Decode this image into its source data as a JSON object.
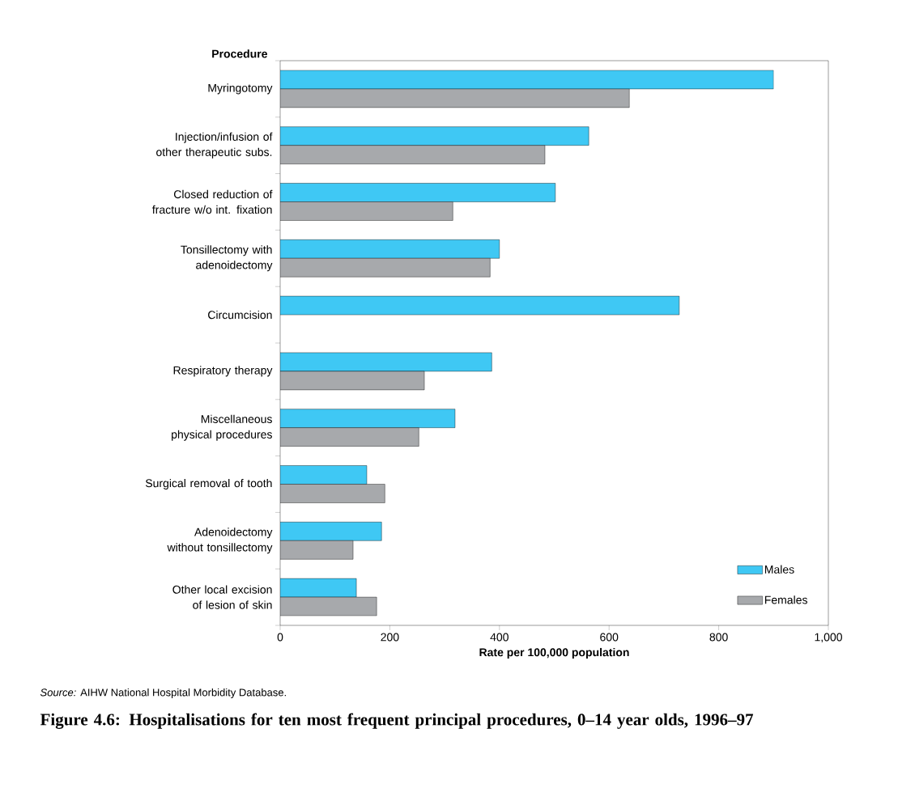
{
  "chart_data": {
    "type": "bar",
    "orientation": "horizontal",
    "title": "Figure 4.6: Hospitalisations for ten most frequent principal procedures, 0–14 year olds, 1996–97",
    "ylabel": "Procedure",
    "xlabel": "Rate per 100,000 population",
    "categories": [
      "Myringotomy",
      "Injection/infusion of other therapeutic subs.",
      "Closed reduction of fracture w/o int. fixation",
      "Tonsillectomy with adenoidectomy",
      "Circumcision",
      "Respiratory therapy",
      "Miscellaneous physical procedures",
      "Surgical removal of tooth",
      "Adenoidectomy without tonsillectomy",
      "Other local excision of lesion of skin"
    ],
    "series": [
      {
        "name": "Males",
        "color": "#3fc8f4",
        "values": [
          900,
          563,
          502,
          400,
          728,
          386,
          319,
          158,
          185,
          139
        ]
      },
      {
        "name": "Females",
        "color": "#a7a9ac",
        "values": [
          637,
          483,
          315,
          383,
          null,
          263,
          253,
          191,
          133,
          176
        ]
      }
    ],
    "xlim": [
      0,
      1000
    ],
    "xticks": [
      0,
      200,
      400,
      600,
      800,
      {
        "value": 1000,
        "label": "1,000"
      }
    ],
    "legend": "bottom right",
    "grid": false,
    "annotations": [
      "*Source:*  AIHW National Hospital Morbidity Database."
    ]
  }
}
